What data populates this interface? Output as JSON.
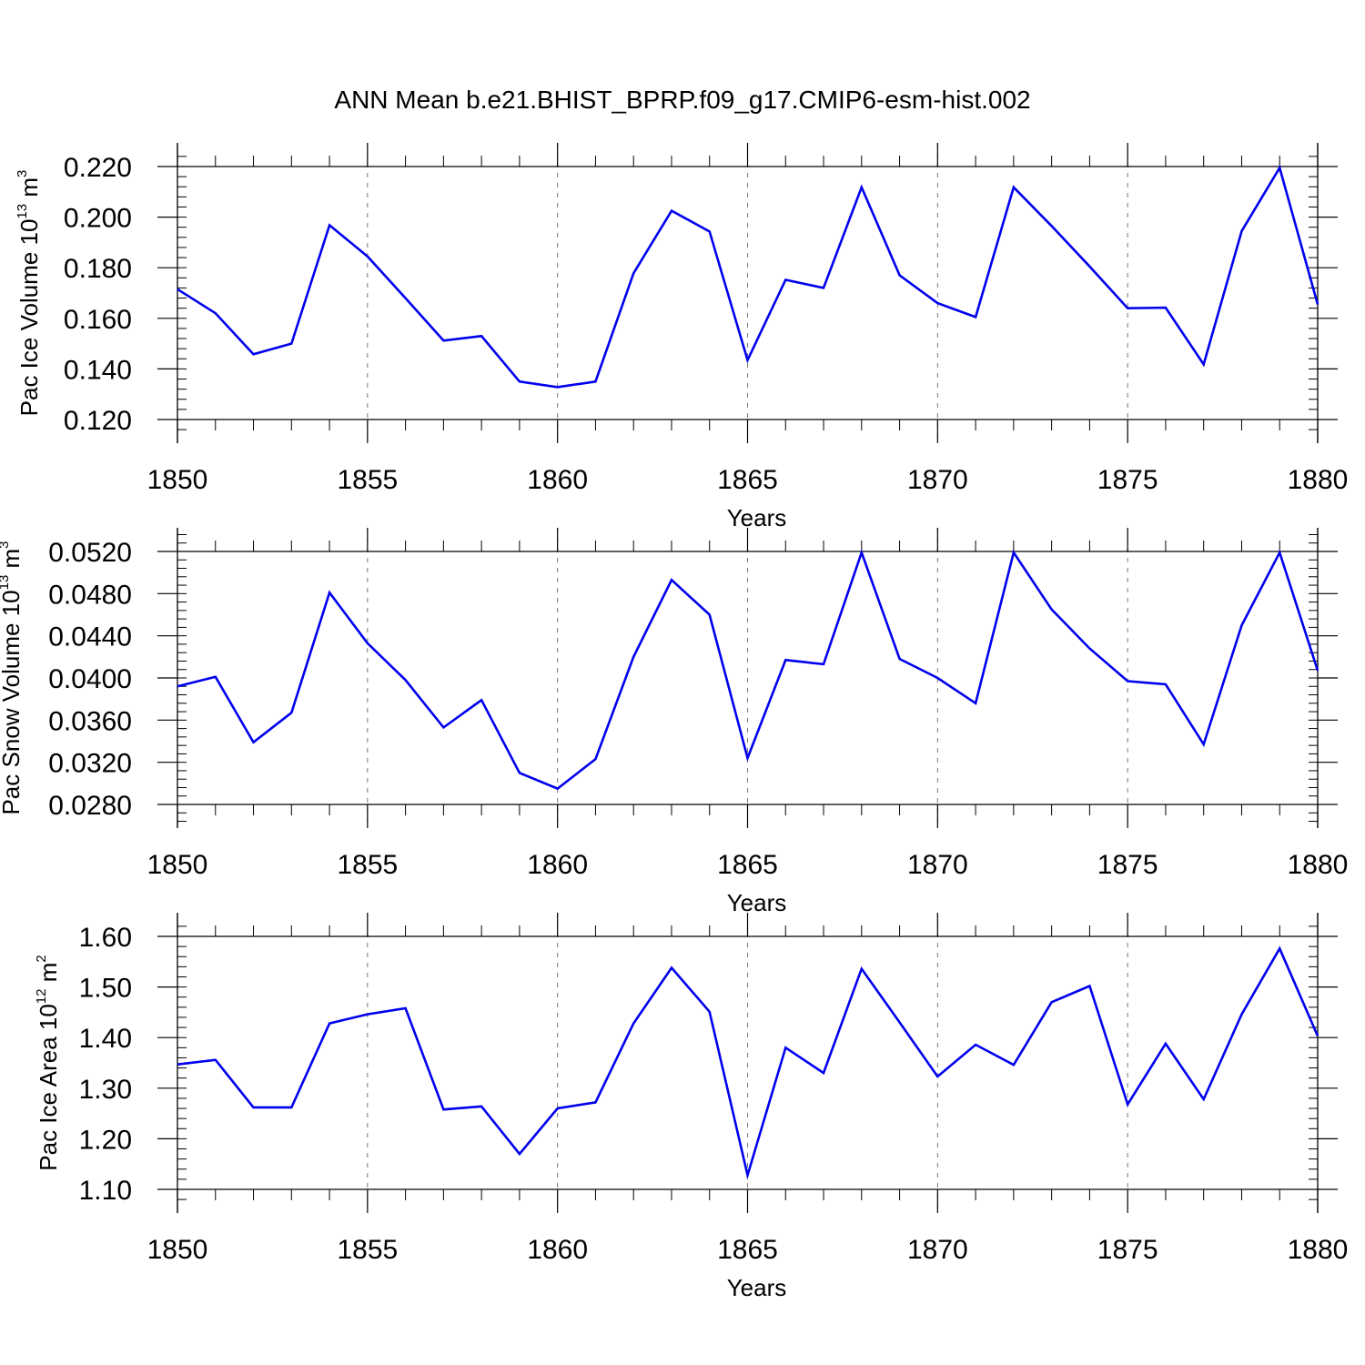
{
  "title": "ANN Mean b.e21.BHIST_BPRP.f09_g17.CMIP6-esm-hist.002",
  "chart_data": [
    {
      "type": "line",
      "title": "ANN Mean b.e21.BHIST_BPRP.f09_g17.CMIP6-esm-hist.002",
      "xlabel": "Years",
      "ylabel": {
        "text": "Pac Ice Volume 10",
        "sup": "13",
        "unit": " m",
        "unit_sup": "3"
      },
      "xlim": [
        1850,
        1880
      ],
      "ylim": [
        0.115,
        0.225
      ],
      "xticks": [
        1850,
        1855,
        1860,
        1865,
        1870,
        1875,
        1880
      ],
      "yticks": [
        "0.120",
        "0.140",
        "0.160",
        "0.180",
        "0.200",
        "0.220"
      ],
      "line_color": "#0000ee",
      "x": [
        1850,
        1851,
        1852,
        1853,
        1854,
        1855,
        1856,
        1857,
        1858,
        1859,
        1860,
        1861,
        1862,
        1863,
        1864,
        1865,
        1866,
        1867,
        1868,
        1869,
        1870,
        1871,
        1872,
        1873,
        1874,
        1875,
        1876,
        1877,
        1878,
        1879,
        1880
      ],
      "y": [
        0.1715,
        0.162,
        0.1458,
        0.15,
        0.1968,
        0.1845,
        0.168,
        0.1512,
        0.153,
        0.135,
        0.1328,
        0.135,
        0.1778,
        0.2025,
        0.1943,
        0.1435,
        0.1752,
        0.172,
        0.2118,
        0.177,
        0.166,
        0.1605,
        0.2118,
        0.1965,
        0.1805,
        0.164,
        0.1642,
        0.1418,
        0.1945,
        0.2195,
        0.1655
      ]
    },
    {
      "type": "line",
      "xlabel": "Years",
      "ylabel": {
        "text": "Pac Snow Volume 10",
        "sup": "13",
        "unit": " m",
        "unit_sup": "3"
      },
      "xlim": [
        1850,
        1880
      ],
      "ylim": [
        0.0264,
        0.0536
      ],
      "xticks": [
        1850,
        1855,
        1860,
        1865,
        1870,
        1875,
        1880
      ],
      "yticks": [
        "0.0280",
        "0.0320",
        "0.0360",
        "0.0400",
        "0.0440",
        "0.0480",
        "0.0520"
      ],
      "line_color": "#0000ee",
      "x": [
        1850,
        1851,
        1852,
        1853,
        1854,
        1855,
        1856,
        1857,
        1858,
        1859,
        1860,
        1861,
        1862,
        1863,
        1864,
        1865,
        1866,
        1867,
        1868,
        1869,
        1870,
        1871,
        1872,
        1873,
        1874,
        1875,
        1876,
        1877,
        1878,
        1879,
        1880
      ],
      "y": [
        0.0392,
        0.0401,
        0.0339,
        0.0367,
        0.0481,
        0.0433,
        0.0398,
        0.0353,
        0.0379,
        0.031,
        0.0295,
        0.0323,
        0.042,
        0.0493,
        0.046,
        0.0324,
        0.0417,
        0.0413,
        0.0519,
        0.0418,
        0.04,
        0.0376,
        0.0519,
        0.0465,
        0.0428,
        0.0397,
        0.0394,
        0.0337,
        0.045,
        0.0519,
        0.0407
      ]
    },
    {
      "type": "line",
      "xlabel": "Years",
      "ylabel": {
        "text": "Pac Ice Area 10",
        "sup": "12",
        "unit": " m",
        "unit_sup": "2"
      },
      "xlim": [
        1850,
        1880
      ],
      "ylim": [
        1.07,
        1.63
      ],
      "xticks": [
        1850,
        1855,
        1860,
        1865,
        1870,
        1875,
        1880
      ],
      "yticks": [
        "1.10",
        "1.20",
        "1.30",
        "1.40",
        "1.50",
        "1.60"
      ],
      "line_color": "#0000ee",
      "x": [
        1850,
        1851,
        1852,
        1853,
        1854,
        1855,
        1856,
        1857,
        1858,
        1859,
        1860,
        1861,
        1862,
        1863,
        1864,
        1865,
        1866,
        1867,
        1868,
        1869,
        1870,
        1871,
        1872,
        1873,
        1874,
        1875,
        1876,
        1877,
        1878,
        1879,
        1880
      ],
      "y": [
        1.347,
        1.356,
        1.262,
        1.262,
        1.428,
        1.446,
        1.458,
        1.258,
        1.264,
        1.17,
        1.26,
        1.272,
        1.428,
        1.538,
        1.451,
        1.128,
        1.38,
        1.33,
        1.536,
        1.43,
        1.323,
        1.386,
        1.346,
        1.47,
        1.502,
        1.268,
        1.388,
        1.278,
        1.446,
        1.576,
        1.403
      ]
    }
  ]
}
